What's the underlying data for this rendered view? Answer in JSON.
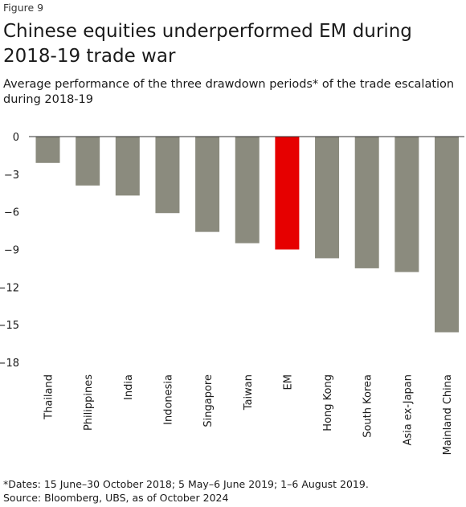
{
  "figure_label": "Figure 9",
  "title": "Chinese equities underperformed EM during 2018-19 trade war",
  "subtitle": "Average performance of the three drawdown periods* of the trade escalation during 2018-19",
  "footnote": {
    "dates": "*Dates: 15 June–30 October 2018; 5 May–6 June 2019; 1–6 August 2019.",
    "source": "Source: Bloomberg, UBS, as of October 2024"
  },
  "colors": {
    "bar": "#8b8b7e",
    "highlight": "#e60000",
    "axis": "#333333"
  },
  "chart_data": {
    "type": "bar",
    "categories": [
      "Thailand",
      "Philippines",
      "India",
      "Indonesia",
      "Singapore",
      "Taiwan",
      "EM",
      "Hong Kong",
      "South Korea",
      "Asia ex-Japan",
      "Mainland China"
    ],
    "values": [
      -2.1,
      -3.9,
      -4.7,
      -6.1,
      -7.6,
      -8.5,
      -9.0,
      -9.7,
      -10.5,
      -10.8,
      -15.6
    ],
    "highlight": "EM",
    "ylim": [
      -18,
      0
    ],
    "yticks": [
      0,
      -3,
      -6,
      -9,
      -12,
      -15,
      -18
    ],
    "ytick_labels": [
      "0",
      "−3",
      "−6",
      "−9",
      "−12",
      "−15",
      "−18"
    ],
    "xlabel": "",
    "ylabel": "",
    "grid": false
  }
}
